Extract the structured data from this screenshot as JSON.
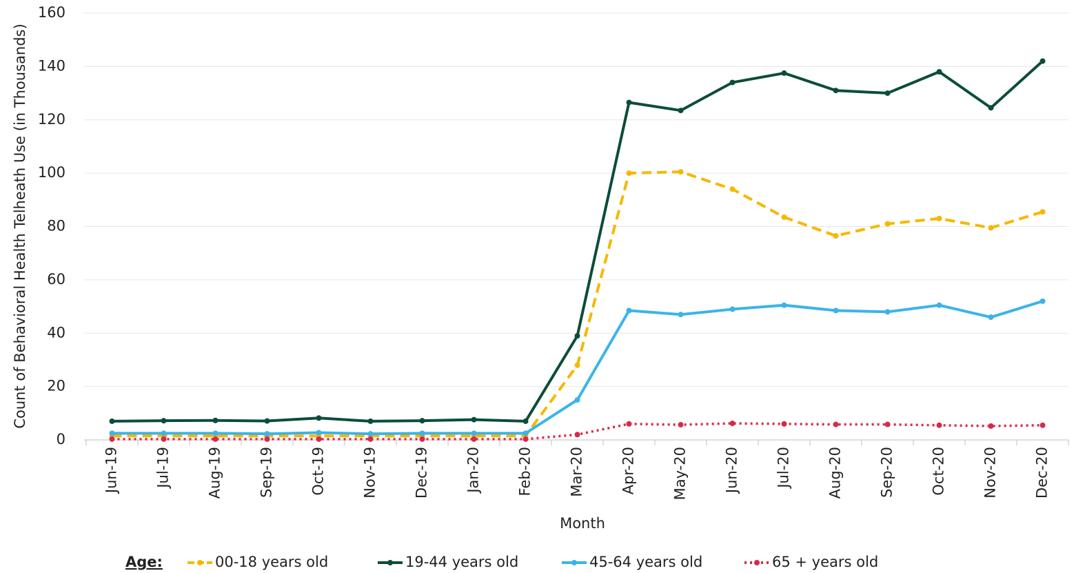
{
  "chart_data": {
    "type": "line",
    "x_label": "Month",
    "y_label": "Count of Behavioral Health Telheath Use (in Thousands)",
    "legend_title": "Age:",
    "categories": [
      "Jun-19",
      "Jul-19",
      "Aug-19",
      "Sep-19",
      "Oct-19",
      "Nov-19",
      "Dec-19",
      "Jan-20",
      "Feb-20",
      "Mar-20",
      "Apr-20",
      "May-20",
      "Jun-20",
      "Jul-20",
      "Aug-20",
      "Sep-20",
      "Oct-20",
      "Nov-20",
      "Dec-20"
    ],
    "series": [
      {
        "name": "00-18 years old",
        "color": "#f5b800",
        "style": "dashed",
        "values": [
          1.5,
          1.5,
          1.5,
          1.5,
          1.5,
          1.5,
          1.5,
          1.5,
          1.5,
          28,
          100,
          100.5,
          94,
          83.5,
          76.5,
          81,
          83,
          79.5,
          85.5
        ]
      },
      {
        "name": "19-44 years old",
        "color": "#0b4d3a",
        "style": "solid",
        "values": [
          7,
          7.2,
          7.3,
          7.1,
          8.2,
          7,
          7.2,
          7.6,
          7,
          39,
          126.5,
          123.5,
          134,
          137.5,
          131,
          130,
          138,
          124.5,
          142
        ]
      },
      {
        "name": "45-64 years old",
        "color": "#3bb4e8",
        "style": "solid",
        "values": [
          2.5,
          2.5,
          2.5,
          2.3,
          2.7,
          2.3,
          2.5,
          2.5,
          2.5,
          15,
          48.5,
          47,
          49,
          50.5,
          48.5,
          48,
          50.5,
          46,
          52
        ]
      },
      {
        "name": "65 + years old",
        "color": "#d9294a",
        "style": "dotted",
        "values": [
          0.3,
          0.3,
          0.3,
          0.3,
          0.3,
          0.3,
          0.3,
          0.3,
          0.3,
          2,
          6,
          5.7,
          6.2,
          6,
          5.8,
          5.8,
          5.5,
          5.2,
          5.5
        ]
      }
    ],
    "ylim": [
      0,
      160
    ],
    "yticks": [
      0,
      20,
      40,
      60,
      80,
      100,
      120,
      140,
      160
    ],
    "grid": true
  }
}
